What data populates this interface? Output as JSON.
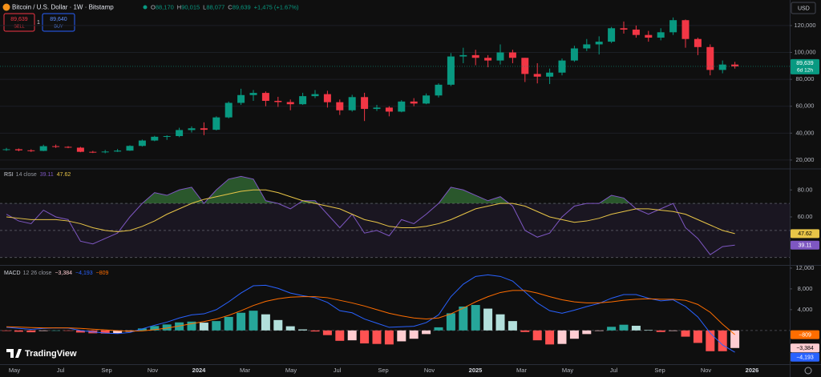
{
  "header": {
    "symbol": "Bitcoin / U.S. Dollar · 1W · Bitstamp",
    "ohlc": [
      {
        "key": "O",
        "value": "88,170"
      },
      {
        "key": "H",
        "value": "90,015"
      },
      {
        "key": "L",
        "value": "88,077"
      },
      {
        "key": "C",
        "value": "89,639"
      }
    ],
    "change": "+1,475 (+1.67%)",
    "sell": {
      "price": "89,639",
      "label": "SELL"
    },
    "spread": "1",
    "buy": {
      "price": "89,640",
      "label": "BUY"
    },
    "currency": "USD",
    "countdown": "6d 12h",
    "brand": "TradingView"
  },
  "x_axis_labels": [
    "May",
    "Jul",
    "Sep",
    "Nov",
    "2024",
    "Mar",
    "May",
    "Jul",
    "Sep",
    "Nov",
    "2025",
    "Mar",
    "May",
    "Jul",
    "Sep",
    "Nov",
    "2026"
  ],
  "chart_data": [
    {
      "type": "candlestick",
      "color_up": "#089981",
      "color_down": "#f23645",
      "open": [
        27500,
        28000,
        27200,
        26800,
        30300,
        29800,
        29200,
        26100,
        25900,
        26300,
        27000,
        30500,
        34500,
        37300,
        37800,
        42300,
        43600,
        42500,
        51700,
        62500,
        68300,
        69900,
        64000,
        63100,
        61500,
        67500,
        69000,
        63000,
        57000,
        66800,
        58000,
        59000,
        56000,
        63500,
        62000,
        68000,
        76000,
        97000,
        98000,
        96000,
        94000,
        100000,
        96000,
        84000,
        82000,
        85000,
        94000,
        103000,
        106000,
        108000,
        118000,
        117000,
        113000,
        111000,
        115000,
        124000,
        110000,
        104000,
        87000,
        91000
      ],
      "high": [
        29000,
        28600,
        28000,
        31400,
        31500,
        30300,
        29800,
        26800,
        27500,
        28200,
        31000,
        35200,
        38000,
        38400,
        44000,
        45000,
        48000,
        52500,
        63500,
        73000,
        72000,
        71000,
        67000,
        65000,
        70000,
        72000,
        71500,
        65000,
        68500,
        70000,
        61000,
        60000,
        64500,
        66000,
        69500,
        77000,
        99500,
        103500,
        102000,
        98000,
        106000,
        102000,
        96000,
        92000,
        88000,
        95500,
        105000,
        110000,
        112000,
        119000,
        123000,
        120000,
        116000,
        118000,
        126000,
        124500,
        111000,
        106000,
        94000,
        93000
      ],
      "low": [
        26800,
        26500,
        26000,
        26600,
        29000,
        28800,
        25800,
        25200,
        25000,
        26000,
        26800,
        30000,
        34000,
        35000,
        37000,
        40500,
        38500,
        42000,
        51000,
        61000,
        64000,
        60000,
        59500,
        57000,
        61000,
        66000,
        59000,
        53500,
        56000,
        49000,
        56500,
        52500,
        55500,
        60000,
        61500,
        66500,
        75000,
        92000,
        90500,
        89000,
        91000,
        92000,
        78000,
        77000,
        76500,
        83000,
        93000,
        101000,
        98500,
        107000,
        114000,
        111000,
        108000,
        109000,
        113000,
        103500,
        98000,
        83000,
        84500,
        88000
      ],
      "close": [
        28000,
        27200,
        26800,
        30300,
        29800,
        29200,
        26100,
        25900,
        26300,
        27000,
        30500,
        34500,
        37300,
        37800,
        42300,
        43600,
        42500,
        51700,
        62500,
        68300,
        69900,
        64000,
        63100,
        61500,
        67500,
        69000,
        63000,
        57000,
        66800,
        58000,
        59000,
        56000,
        63500,
        62000,
        68000,
        76000,
        97000,
        98000,
        96000,
        94000,
        100000,
        96000,
        84000,
        82000,
        85000,
        94000,
        103000,
        106000,
        108000,
        118000,
        117000,
        113000,
        111000,
        115000,
        124000,
        110000,
        104000,
        87000,
        91000,
        89639
      ],
      "last_label": "89,639",
      "ylim": [
        14000,
        139000
      ],
      "yticks": [
        {
          "value": 20000,
          "label": "20,000"
        },
        {
          "value": 40000,
          "label": "40,000"
        },
        {
          "value": 60000,
          "label": "60,000"
        },
        {
          "value": 80000,
          "label": "80,000"
        },
        {
          "value": 100000,
          "label": "100,000"
        },
        {
          "value": 120000,
          "label": "120,000"
        }
      ]
    },
    {
      "type": "line",
      "title": "RSI",
      "params": "14 close",
      "series": [
        {
          "color": "#7e57c2",
          "values": [
            62,
            57,
            55,
            65,
            60,
            58,
            42,
            40,
            44,
            48,
            60,
            70,
            78,
            76,
            80,
            82,
            70,
            80,
            88,
            90,
            88,
            72,
            70,
            66,
            72,
            72,
            62,
            52,
            62,
            48,
            50,
            46,
            58,
            55,
            62,
            70,
            82,
            80,
            76,
            72,
            75,
            68,
            50,
            45,
            48,
            60,
            68,
            70,
            70,
            76,
            74,
            66,
            62,
            66,
            70,
            52,
            44,
            32,
            38,
            39.11
          ]
        },
        {
          "color": "#e8c547",
          "values": [
            60,
            59,
            58,
            58,
            58,
            57,
            55,
            52,
            50,
            49,
            50,
            53,
            57,
            62,
            66,
            70,
            73,
            75,
            77,
            79,
            80,
            80,
            78,
            75,
            72,
            70,
            68,
            66,
            62,
            58,
            56,
            53,
            52,
            52,
            53,
            55,
            58,
            62,
            66,
            68,
            70,
            70,
            68,
            64,
            60,
            58,
            56,
            57,
            59,
            62,
            64,
            66,
            66,
            65,
            64,
            62,
            58,
            54,
            50,
            47.62
          ]
        }
      ],
      "bands": [
        70,
        50,
        30
      ],
      "ylim": [
        25,
        95
      ],
      "yticks": [
        {
          "value": 80,
          "label": "80.00"
        },
        {
          "value": 60,
          "label": "60.00"
        }
      ]
    },
    {
      "type": "macd",
      "title": "MACD",
      "params": "12 26 close",
      "histogram": {
        "values": [
          -100,
          -250,
          -350,
          -100,
          0,
          -40,
          -400,
          -550,
          -600,
          -550,
          -250,
          380,
          850,
          1150,
          1550,
          1700,
          1500,
          1800,
          2600,
          3400,
          3800,
          3100,
          2000,
          800,
          200,
          -200,
          -900,
          -2000,
          -1900,
          -2500,
          -2600,
          -2700,
          -2100,
          -1600,
          -700,
          600,
          3300,
          4600,
          4900,
          4200,
          3100,
          1800,
          -300,
          -1900,
          -2700,
          -2600,
          -1600,
          -700,
          -100,
          700,
          1100,
          900,
          100,
          -300,
          -100,
          -1200,
          -2400,
          -4000,
          -4000,
          -3384
        ],
        "printed": "−3,384"
      },
      "series": [
        {
          "color": "#2962ff",
          "values": [
            600,
            400,
            200,
            400,
            500,
            450,
            0,
            -300,
            -500,
            -600,
            -400,
            300,
            1000,
            1600,
            2400,
            3000,
            3200,
            4000,
            5500,
            7200,
            8600,
            8700,
            8100,
            7200,
            6700,
            6300,
            5400,
            3800,
            3400,
            2200,
            1400,
            600,
            700,
            800,
            1500,
            3000,
            6500,
            8900,
            10400,
            10700,
            10400,
            9500,
            7400,
            5300,
            3800,
            3300,
            3900,
            4600,
            5200,
            6200,
            6900,
            6900,
            6200,
            5700,
            5900,
            4600,
            2600,
            -500,
            -2800,
            -4193
          ],
          "printed": "−4,193"
        },
        {
          "color": "#ff6d00",
          "values": [
            700,
            650,
            550,
            500,
            500,
            490,
            400,
            250,
            100,
            -50,
            -150,
            -80,
            150,
            450,
            850,
            1300,
            1700,
            2200,
            2900,
            3800,
            4800,
            5600,
            6100,
            6400,
            6500,
            6500,
            6300,
            5800,
            5300,
            4700,
            4000,
            3300,
            2800,
            2400,
            2200,
            2400,
            3200,
            4300,
            5500,
            6500,
            7300,
            7700,
            7700,
            7200,
            6500,
            5900,
            5500,
            5300,
            5300,
            5500,
            5800,
            6000,
            6100,
            6000,
            6000,
            5800,
            5000,
            3500,
            1200,
            -809
          ],
          "printed": "−809"
        }
      ],
      "ylim": [
        -6500,
        12300
      ],
      "yticks": [
        {
          "value": 12000,
          "label": "12,000"
        },
        {
          "value": 8000,
          "label": "8,000"
        },
        {
          "value": 4000,
          "label": "4,000"
        }
      ]
    }
  ]
}
